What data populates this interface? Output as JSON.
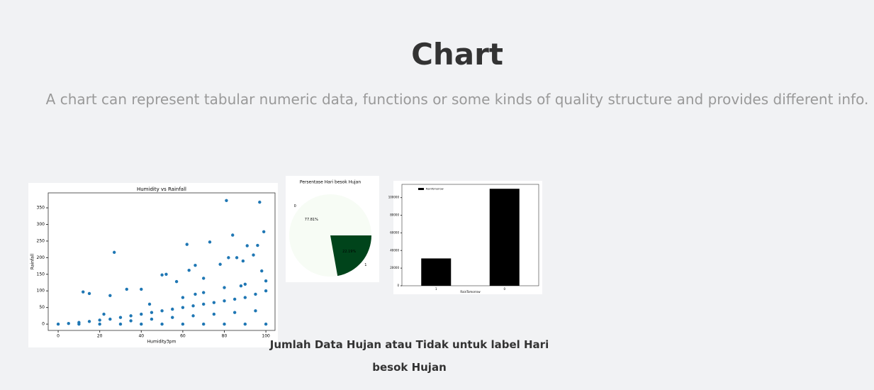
{
  "header": {
    "title": "Chart",
    "subtitle": "A chart can represent tabular numeric data, functions or some kinds of quality structure and provides different info."
  },
  "chart_data": [
    {
      "type": "scatter",
      "title": "Humidity vs Rainfall",
      "x_label": "Humidity3pm",
      "y_label": "Rainfall",
      "color": "#1f77b4",
      "xlim": [
        -4.8,
        104.4
      ],
      "ylim": [
        -19,
        395
      ],
      "xticks": [
        0,
        20,
        40,
        60,
        80,
        100
      ],
      "yticks": [
        0,
        50,
        100,
        150,
        200,
        250,
        300,
        350
      ],
      "x": [
        81,
        97,
        99,
        84,
        27,
        62,
        73,
        82,
        94,
        12,
        15,
        25,
        33,
        40,
        50,
        52,
        57,
        63,
        66,
        70,
        78,
        86,
        89,
        91,
        96,
        98,
        0,
        5,
        10,
        15,
        20,
        25,
        30,
        35,
        40,
        45,
        50,
        55,
        60,
        65,
        70,
        75,
        80,
        85,
        90,
        95,
        100,
        10,
        20,
        30,
        40,
        50,
        60,
        70,
        80,
        90,
        100,
        35,
        45,
        55,
        65,
        75,
        85,
        95,
        60,
        70,
        80,
        90,
        100,
        22,
        44,
        66,
        88
      ],
      "y": [
        372,
        367,
        278,
        268,
        216,
        240,
        247,
        200,
        208,
        97,
        92,
        86,
        105,
        105,
        148,
        150,
        128,
        162,
        177,
        138,
        180,
        200,
        190,
        236,
        237,
        160,
        0,
        2,
        5,
        8,
        12,
        15,
        20,
        25,
        30,
        35,
        40,
        45,
        50,
        55,
        60,
        65,
        70,
        75,
        80,
        90,
        100,
        0,
        0,
        0,
        0,
        0,
        0,
        0,
        0,
        0,
        0,
        10,
        15,
        20,
        25,
        30,
        35,
        40,
        80,
        95,
        110,
        120,
        130,
        30,
        60,
        90,
        115
      ]
    },
    {
      "type": "pie",
      "title": "Persentase Hari besok Hujan",
      "categories": [
        "0",
        "1"
      ],
      "values": [
        77.81,
        22.19
      ],
      "value_labels": [
        "77.81%",
        "22.19%"
      ],
      "colors": [
        "#f7fcf5",
        "#00441b"
      ]
    },
    {
      "type": "bar",
      "x_label": "RainTomorrow",
      "categories": [
        "1",
        "0"
      ],
      "values": [
        31000,
        110000
      ],
      "color": "#000000",
      "series_name": "RainTomorrow",
      "ylim": [
        0,
        115000
      ],
      "yticks": [
        0,
        20000,
        40000,
        60000,
        80000,
        100000
      ]
    }
  ],
  "caption": "Jumlah Data Hujan atau Tidak untuk label Hari besok Hujan"
}
